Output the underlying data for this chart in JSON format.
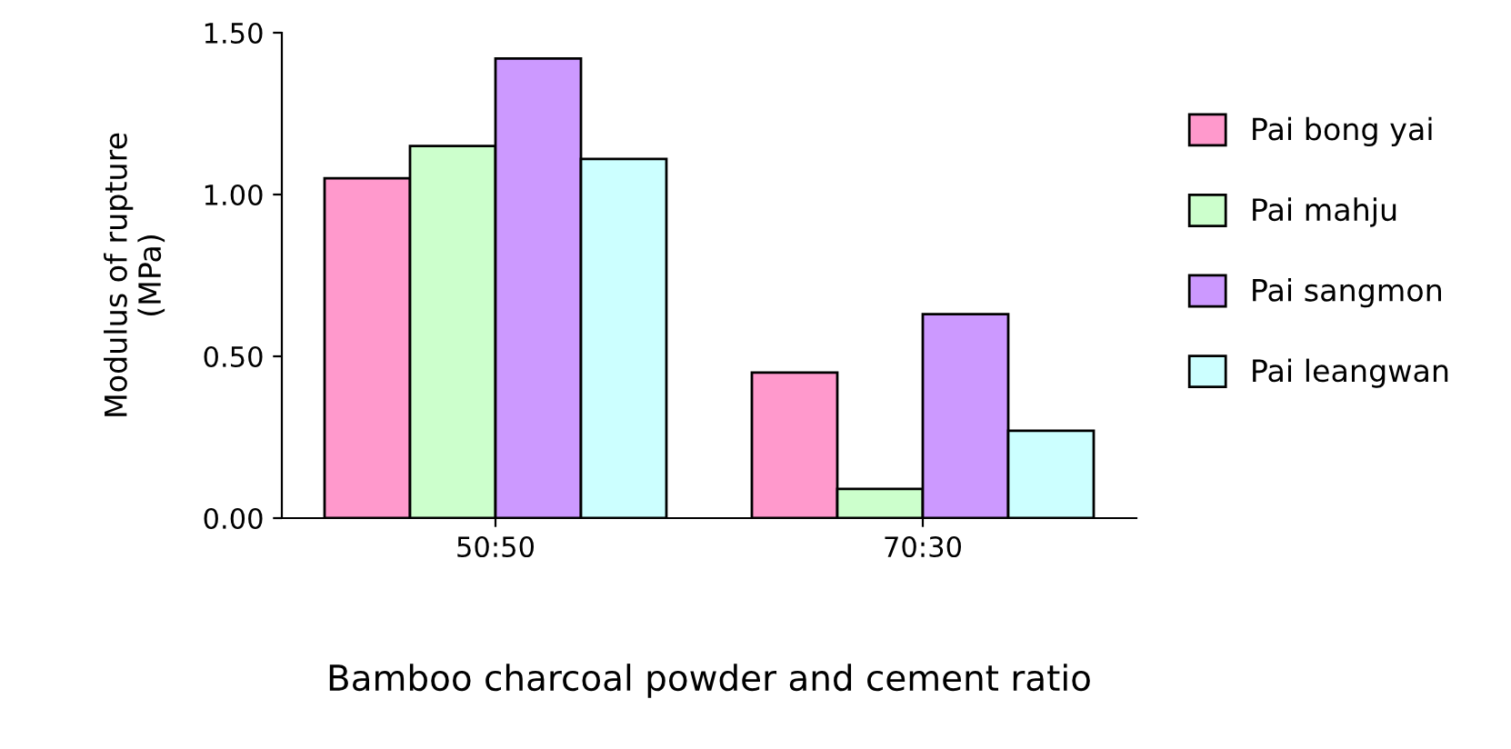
{
  "chart_data": {
    "type": "bar",
    "xlabel": "Bamboo charcoal powder and cement ratio",
    "ylabel": "Modulus of rupture\n(MPa)",
    "categories": [
      "50:50",
      "70:30"
    ],
    "series": [
      {
        "name": "Pai bong yai",
        "color": "#ff99cc",
        "values": [
          1.05,
          0.45
        ]
      },
      {
        "name": "Pai mahju",
        "color": "#ccffcc",
        "values": [
          1.15,
          0.09
        ]
      },
      {
        "name": "Pai sangmon",
        "color": "#cc99ff",
        "values": [
          1.42,
          0.63
        ]
      },
      {
        "name": "Pai leangwan",
        "color": "#ccffff",
        "values": [
          1.11,
          0.27
        ]
      }
    ],
    "ylim": [
      0,
      1.5
    ],
    "yticks": [
      {
        "value": 0,
        "label": "0.00"
      },
      {
        "value": 0.5,
        "label": "0.50"
      },
      {
        "value": 1,
        "label": "1.00"
      },
      {
        "value": 1.5,
        "label": "1.50"
      }
    ],
    "grid": false,
    "legend": "right"
  }
}
